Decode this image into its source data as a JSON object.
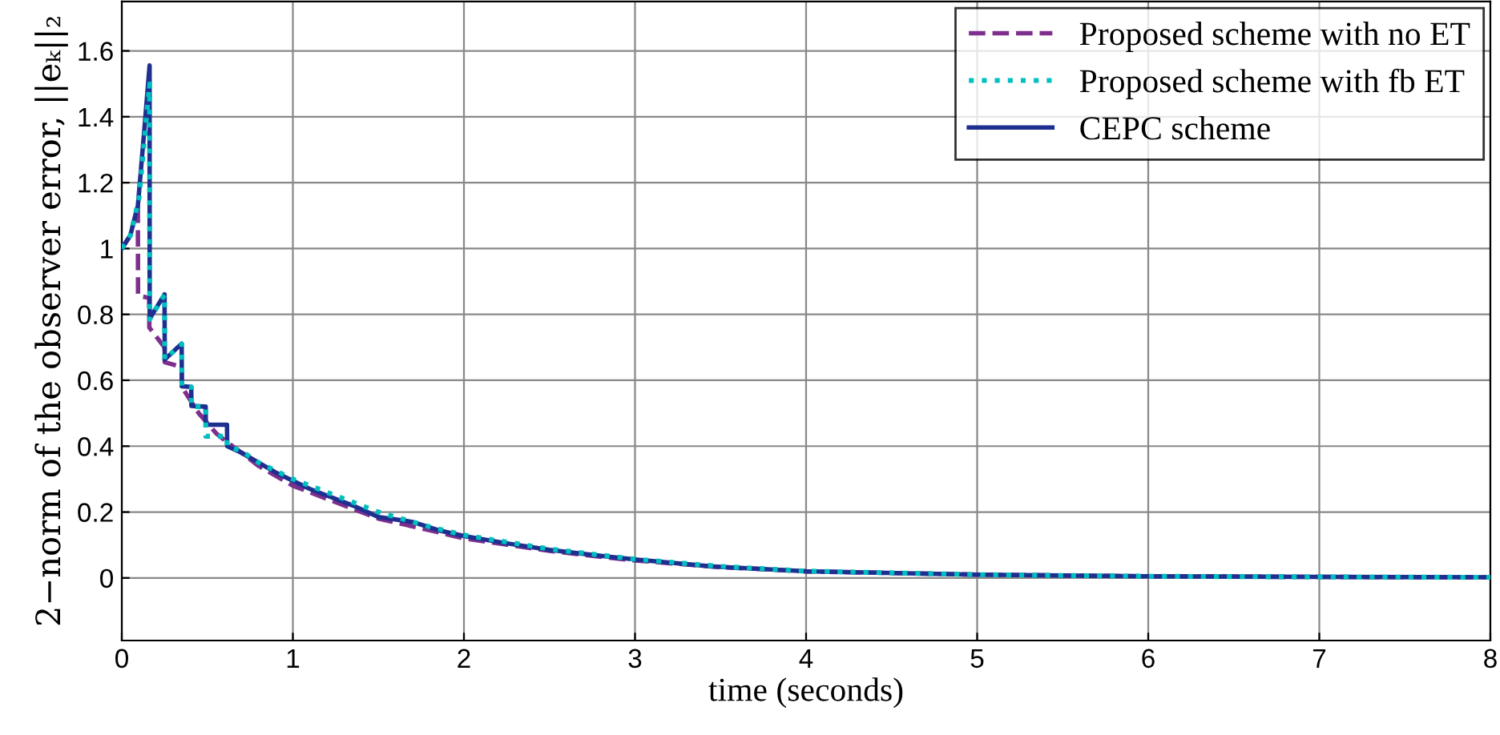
{
  "chart_data": {
    "type": "line",
    "xlabel": "time (seconds)",
    "ylabel": "2−norm of the observer error, ||eₖ||₂",
    "xlim": [
      0,
      8
    ],
    "ylim": [
      -0.19,
      1.75
    ],
    "xticks": [
      0,
      1,
      2,
      3,
      4,
      5,
      6,
      7,
      8
    ],
    "yticks": [
      0,
      0.2,
      0.4,
      0.6,
      0.8,
      1,
      1.2,
      1.4,
      1.6
    ],
    "grid": true,
    "legend": "top right",
    "series": [
      {
        "name": "Proposed scheme with no ET",
        "color": "#7e2f8e",
        "line_style": "dashed",
        "x": [
          0,
          0.05,
          0.094,
          0.095,
          0.16,
          0.161,
          0.22,
          0.25,
          0.251,
          0.35,
          0.351,
          0.45,
          0.5,
          0.55,
          0.62,
          0.7,
          0.8,
          1,
          1.2,
          1.5,
          1.8,
          2,
          2.5,
          3,
          3.5,
          4,
          5,
          6,
          7,
          8
        ],
        "values": [
          1.0,
          1.04,
          1.13,
          0.857,
          0.85,
          0.76,
          0.72,
          0.7,
          0.655,
          0.64,
          0.58,
          0.5,
          0.47,
          0.44,
          0.41,
          0.38,
          0.34,
          0.28,
          0.24,
          0.18,
          0.145,
          0.12,
          0.082,
          0.053,
          0.033,
          0.02,
          0.01,
          0.005,
          0.003,
          0.002
        ]
      },
      {
        "name": "Proposed scheme with fb ET",
        "color": "#00bfbf",
        "line_style": "dotted",
        "x": [
          0,
          0.05,
          0.1,
          0.1625,
          0.163,
          0.25,
          0.251,
          0.35,
          0.351,
          0.406,
          0.407,
          0.49,
          0.491,
          0.615,
          0.616,
          0.7,
          0.8,
          1,
          1.2,
          1.5,
          1.8,
          2,
          2.5,
          3,
          3.5,
          4,
          5,
          6,
          7,
          8
        ],
        "values": [
          1.0,
          1.04,
          1.15,
          1.5,
          0.785,
          0.86,
          0.663,
          0.71,
          0.582,
          0.58,
          0.52,
          0.52,
          0.43,
          0.43,
          0.4,
          0.385,
          0.35,
          0.3,
          0.26,
          0.2,
          0.155,
          0.13,
          0.088,
          0.057,
          0.035,
          0.021,
          0.01,
          0.005,
          0.003,
          0.002
        ]
      },
      {
        "name": "CEPC scheme",
        "color": "#1f2f8f",
        "line_style": "solid",
        "x": [
          0,
          0.05,
          0.094,
          0.13,
          0.1625,
          0.163,
          0.25,
          0.251,
          0.35,
          0.351,
          0.406,
          0.407,
          0.49,
          0.491,
          0.615,
          0.616,
          0.7,
          0.8,
          0.9,
          1,
          1.1,
          1.2,
          1.35,
          1.5,
          1.7,
          1.85,
          2,
          2.25,
          2.5,
          2.75,
          3,
          3.45,
          4,
          5,
          6,
          7,
          8
        ],
        "values": [
          1.0,
          1.04,
          1.13,
          1.35,
          1.556,
          0.787,
          0.861,
          0.663,
          0.711,
          0.582,
          0.58,
          0.522,
          0.52,
          0.465,
          0.465,
          0.4,
          0.38,
          0.35,
          0.32,
          0.295,
          0.27,
          0.25,
          0.22,
          0.185,
          0.17,
          0.145,
          0.127,
          0.105,
          0.085,
          0.07,
          0.056,
          0.035,
          0.02,
          0.01,
          0.005,
          0.003,
          0.002
        ]
      }
    ]
  }
}
